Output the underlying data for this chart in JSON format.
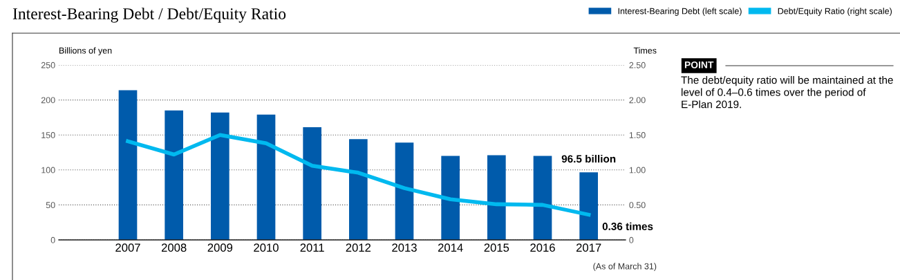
{
  "chart_data": {
    "type": "bar",
    "title": "Interest-Bearing Debt / Debt/Equity Ratio",
    "ylabel": "Billions of yen",
    "y2label": "Times",
    "categories": [
      "2007",
      "2008",
      "2009",
      "2010",
      "2011",
      "2012",
      "2013",
      "2014",
      "2015",
      "2016",
      "2017"
    ],
    "series": [
      {
        "name": "Interest-Bearing Debt (left scale)",
        "color": "#005bab",
        "values": [
          214,
          185,
          182,
          179,
          161,
          144,
          139,
          120,
          121,
          120,
          96.5
        ],
        "value_labels": [
          null,
          null,
          null,
          null,
          null,
          null,
          null,
          null,
          null,
          null,
          "96.5 billion"
        ]
      },
      {
        "name": "Debt/Equity Ratio (right scale)",
        "type": "line",
        "axis": "y2",
        "color": "#00b9ef",
        "values": [
          1.41,
          1.22,
          1.5,
          1.38,
          1.06,
          0.96,
          0.74,
          0.58,
          0.51,
          0.5,
          0.36
        ],
        "value_labels": [
          null,
          null,
          null,
          null,
          null,
          null,
          null,
          null,
          null,
          null,
          "0.36 times"
        ]
      }
    ],
    "ylim": [
      0,
      250
    ],
    "yticks": [
      0,
      50,
      100,
      150,
      200,
      250
    ],
    "y2lim": [
      0,
      2.5
    ],
    "y2ticks": [
      0,
      {
        "value": 0.5,
        "label": "0.50"
      },
      {
        "value": 1,
        "label": "1.00"
      },
      {
        "value": 1.5,
        "label": "1.50"
      },
      {
        "value": 2,
        "label": "2.00"
      },
      {
        "value": 2.5,
        "label": "2.50"
      }
    ],
    "grid": "y",
    "legend": "top right",
    "marker": "none",
    "line_style": "solid",
    "annotations": [
      "(As of March 31)",
      "POINT",
      "The debt/equity ratio will be maintained at the level of 0.4–0.6 times over the period of E-Plan 2019."
    ]
  }
}
